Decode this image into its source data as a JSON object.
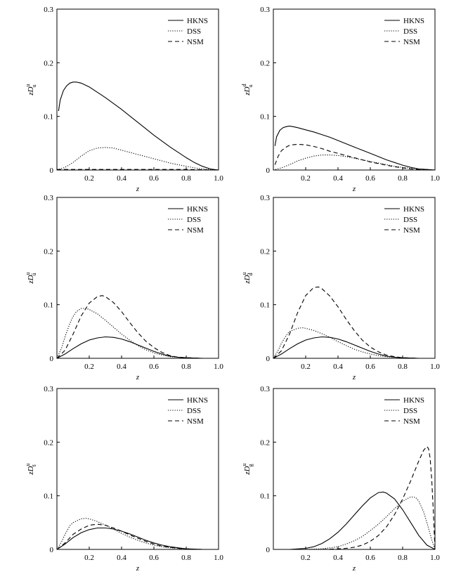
{
  "chart_data": [
    {
      "type": "line",
      "ylabel": "zD_u^u",
      "ylabel_main": "zD",
      "ylabel_sub": "u",
      "ylabel_sup": "u",
      "xlabel": "z",
      "xlim": [
        0,
        1.0
      ],
      "ylim": [
        0,
        0.3
      ],
      "xticks": [
        "0.2",
        "0.4",
        "0.6",
        "0.8",
        "1.0"
      ],
      "yticks": [
        "0",
        "0.1",
        "0.2",
        "0.3"
      ],
      "legend_position": "top-right",
      "series": [
        {
          "name": "HKNS",
          "style": "solid",
          "x": [
            0.01,
            0.02,
            0.04,
            0.06,
            0.08,
            0.1,
            0.12,
            0.15,
            0.2,
            0.25,
            0.3,
            0.35,
            0.4,
            0.45,
            0.5,
            0.55,
            0.6,
            0.65,
            0.7,
            0.75,
            0.8,
            0.85,
            0.9,
            0.95,
            1.0
          ],
          "y": [
            0.11,
            0.13,
            0.148,
            0.157,
            0.162,
            0.164,
            0.164,
            0.162,
            0.155,
            0.145,
            0.135,
            0.124,
            0.113,
            0.101,
            0.089,
            0.077,
            0.065,
            0.054,
            0.043,
            0.033,
            0.023,
            0.014,
            0.007,
            0.002,
            0.0
          ]
        },
        {
          "name": "DSS",
          "style": "dotted",
          "x": [
            0.0,
            0.05,
            0.1,
            0.15,
            0.2,
            0.25,
            0.3,
            0.35,
            0.4,
            0.45,
            0.5,
            0.55,
            0.6,
            0.65,
            0.7,
            0.75,
            0.8,
            0.85,
            0.9,
            0.95,
            1.0
          ],
          "y": [
            0.0,
            0.005,
            0.014,
            0.026,
            0.036,
            0.041,
            0.042,
            0.041,
            0.037,
            0.033,
            0.029,
            0.025,
            0.021,
            0.017,
            0.013,
            0.01,
            0.007,
            0.004,
            0.002,
            0.001,
            0.0
          ]
        },
        {
          "name": "NSM",
          "style": "dashed",
          "x": [
            0.0,
            0.2,
            0.4,
            0.6,
            0.8,
            1.0
          ],
          "y": [
            0.001,
            0.001,
            0.001,
            0.001,
            0.001,
            0.0
          ]
        }
      ]
    },
    {
      "type": "line",
      "ylabel": "zD_u^d",
      "ylabel_main": "zD",
      "ylabel_sub": "u",
      "ylabel_sup": "d",
      "xlabel": "z",
      "xlim": [
        0,
        1.0
      ],
      "ylim": [
        0,
        0.3
      ],
      "xticks": [
        "0.2",
        "0.4",
        "0.6",
        "0.8",
        "1.0"
      ],
      "yticks": [
        "0",
        "0.1",
        "0.2",
        "0.3"
      ],
      "legend_position": "top-right",
      "series": [
        {
          "name": "HKNS",
          "style": "solid",
          "x": [
            0.01,
            0.02,
            0.04,
            0.06,
            0.08,
            0.1,
            0.12,
            0.15,
            0.2,
            0.25,
            0.3,
            0.35,
            0.4,
            0.45,
            0.5,
            0.55,
            0.6,
            0.65,
            0.7,
            0.75,
            0.8,
            0.85,
            0.9,
            0.95,
            1.0
          ],
          "y": [
            0.045,
            0.062,
            0.074,
            0.079,
            0.081,
            0.082,
            0.081,
            0.079,
            0.075,
            0.071,
            0.066,
            0.061,
            0.055,
            0.049,
            0.043,
            0.037,
            0.031,
            0.025,
            0.019,
            0.014,
            0.009,
            0.005,
            0.002,
            0.001,
            0.0
          ]
        },
        {
          "name": "DSS",
          "style": "dotted",
          "x": [
            0.0,
            0.05,
            0.1,
            0.15,
            0.2,
            0.25,
            0.3,
            0.35,
            0.4,
            0.45,
            0.5,
            0.55,
            0.6,
            0.65,
            0.7,
            0.75,
            0.8,
            0.85,
            0.9,
            0.95,
            1.0
          ],
          "y": [
            0.0,
            0.004,
            0.01,
            0.017,
            0.022,
            0.026,
            0.028,
            0.028,
            0.027,
            0.025,
            0.022,
            0.019,
            0.016,
            0.013,
            0.01,
            0.007,
            0.005,
            0.003,
            0.002,
            0.001,
            0.0
          ]
        },
        {
          "name": "NSM",
          "style": "dashed",
          "x": [
            0.01,
            0.03,
            0.05,
            0.08,
            0.1,
            0.12,
            0.15,
            0.2,
            0.25,
            0.3,
            0.35,
            0.4,
            0.45,
            0.5,
            0.55,
            0.6,
            0.65,
            0.7,
            0.75,
            0.8,
            0.85,
            0.9,
            0.95,
            1.0
          ],
          "y": [
            0.01,
            0.026,
            0.036,
            0.043,
            0.046,
            0.047,
            0.048,
            0.047,
            0.044,
            0.04,
            0.035,
            0.031,
            0.027,
            0.023,
            0.019,
            0.015,
            0.012,
            0.009,
            0.006,
            0.004,
            0.002,
            0.001,
            0.0,
            0.0
          ]
        }
      ]
    },
    {
      "type": "line",
      "ylabel": "zD_ū^u",
      "ylabel_main": "zD",
      "ylabel_sub": "ū",
      "ylabel_sup": "u",
      "xlabel": "z",
      "xlim": [
        0,
        1.0
      ],
      "ylim": [
        0,
        0.3
      ],
      "xticks": [
        "0.2",
        "0.4",
        "0.6",
        "0.8",
        "1.0"
      ],
      "yticks": [
        "0",
        "0.1",
        "0.2",
        "0.3"
      ],
      "legend_position": "top-right",
      "series": [
        {
          "name": "HKNS",
          "style": "solid",
          "x": [
            0.0,
            0.05,
            0.1,
            0.15,
            0.2,
            0.25,
            0.3,
            0.35,
            0.4,
            0.45,
            0.5,
            0.55,
            0.6,
            0.65,
            0.7,
            0.75,
            0.8,
            0.9,
            1.0
          ],
          "y": [
            0.0,
            0.008,
            0.018,
            0.027,
            0.034,
            0.038,
            0.04,
            0.039,
            0.036,
            0.031,
            0.025,
            0.019,
            0.013,
            0.008,
            0.004,
            0.002,
            0.001,
            0.0,
            0.0
          ]
        },
        {
          "name": "DSS",
          "style": "dotted",
          "x": [
            0.0,
            0.03,
            0.05,
            0.08,
            0.1,
            0.12,
            0.15,
            0.18,
            0.2,
            0.25,
            0.3,
            0.35,
            0.4,
            0.45,
            0.5,
            0.55,
            0.6,
            0.65,
            0.7,
            0.75,
            0.8,
            0.9,
            1.0
          ],
          "y": [
            0.0,
            0.02,
            0.04,
            0.065,
            0.078,
            0.087,
            0.093,
            0.093,
            0.091,
            0.083,
            0.071,
            0.058,
            0.045,
            0.034,
            0.024,
            0.016,
            0.01,
            0.006,
            0.003,
            0.002,
            0.001,
            0.0,
            0.0
          ]
        },
        {
          "name": "NSM",
          "style": "dashed",
          "x": [
            0.0,
            0.05,
            0.1,
            0.15,
            0.2,
            0.25,
            0.28,
            0.3,
            0.35,
            0.4,
            0.45,
            0.5,
            0.55,
            0.6,
            0.65,
            0.7,
            0.75,
            0.8,
            0.9,
            1.0
          ],
          "y": [
            0.0,
            0.015,
            0.045,
            0.079,
            0.103,
            0.115,
            0.117,
            0.115,
            0.104,
            0.087,
            0.067,
            0.048,
            0.032,
            0.02,
            0.011,
            0.005,
            0.002,
            0.001,
            0.0,
            0.0
          ]
        }
      ]
    },
    {
      "type": "line",
      "ylabel": "zD_d̄^u",
      "ylabel_main": "zD",
      "ylabel_sub": "d̄",
      "ylabel_sup": "u",
      "xlabel": "z",
      "xlim": [
        0,
        1.0
      ],
      "ylim": [
        0,
        0.3
      ],
      "xticks": [
        "0.2",
        "0.4",
        "0.6",
        "0.8",
        "1.0"
      ],
      "yticks": [
        "0",
        "0.1",
        "0.2",
        "0.3"
      ],
      "legend_position": "top-right",
      "series": [
        {
          "name": "HKNS",
          "style": "solid",
          "x": [
            0.0,
            0.05,
            0.1,
            0.15,
            0.2,
            0.25,
            0.3,
            0.35,
            0.4,
            0.45,
            0.5,
            0.55,
            0.6,
            0.65,
            0.7,
            0.75,
            0.8,
            0.9,
            1.0
          ],
          "y": [
            0.0,
            0.008,
            0.018,
            0.027,
            0.034,
            0.038,
            0.04,
            0.039,
            0.036,
            0.031,
            0.025,
            0.019,
            0.013,
            0.008,
            0.004,
            0.002,
            0.001,
            0.0,
            0.0
          ]
        },
        {
          "name": "DSS",
          "style": "dotted",
          "x": [
            0.0,
            0.03,
            0.05,
            0.08,
            0.1,
            0.15,
            0.18,
            0.2,
            0.25,
            0.3,
            0.35,
            0.4,
            0.45,
            0.5,
            0.55,
            0.6,
            0.65,
            0.7,
            0.75,
            0.8,
            0.9,
            1.0
          ],
          "y": [
            0.0,
            0.015,
            0.028,
            0.043,
            0.05,
            0.056,
            0.057,
            0.056,
            0.052,
            0.046,
            0.039,
            0.031,
            0.024,
            0.017,
            0.012,
            0.008,
            0.005,
            0.003,
            0.002,
            0.001,
            0.0,
            0.0
          ]
        },
        {
          "name": "NSM",
          "style": "dashed",
          "x": [
            0.0,
            0.05,
            0.1,
            0.15,
            0.2,
            0.25,
            0.28,
            0.3,
            0.35,
            0.4,
            0.45,
            0.5,
            0.55,
            0.6,
            0.65,
            0.7,
            0.75,
            0.8,
            0.9,
            1.0
          ],
          "y": [
            0.0,
            0.014,
            0.045,
            0.085,
            0.117,
            0.132,
            0.133,
            0.13,
            0.116,
            0.096,
            0.073,
            0.052,
            0.034,
            0.021,
            0.012,
            0.006,
            0.003,
            0.001,
            0.0,
            0.0
          ]
        }
      ]
    },
    {
      "type": "line",
      "ylabel": "zD_s̄^u",
      "ylabel_main": "zD",
      "ylabel_sub": "s̄",
      "ylabel_sup": "u",
      "xlabel": "z",
      "xlim": [
        0,
        1.0
      ],
      "ylim": [
        0,
        0.3
      ],
      "xticks": [
        "0.2",
        "0.4",
        "0.6",
        "0.8",
        "1.0"
      ],
      "yticks": [
        "0",
        "0.1",
        "0.2",
        "0.3"
      ],
      "legend_position": "top-right",
      "series": [
        {
          "name": "HKNS",
          "style": "solid",
          "x": [
            0.0,
            0.05,
            0.1,
            0.15,
            0.2,
            0.25,
            0.3,
            0.35,
            0.4,
            0.45,
            0.5,
            0.55,
            0.6,
            0.65,
            0.7,
            0.75,
            0.8,
            0.9,
            1.0
          ],
          "y": [
            0.0,
            0.01,
            0.022,
            0.031,
            0.037,
            0.04,
            0.04,
            0.038,
            0.034,
            0.029,
            0.023,
            0.017,
            0.012,
            0.008,
            0.005,
            0.003,
            0.001,
            0.0,
            0.0
          ]
        },
        {
          "name": "DSS",
          "style": "dotted",
          "x": [
            0.0,
            0.03,
            0.05,
            0.08,
            0.1,
            0.15,
            0.18,
            0.2,
            0.25,
            0.3,
            0.35,
            0.4,
            0.45,
            0.5,
            0.55,
            0.6,
            0.65,
            0.7,
            0.75,
            0.8,
            0.9,
            1.0
          ],
          "y": [
            0.0,
            0.015,
            0.028,
            0.044,
            0.05,
            0.057,
            0.058,
            0.057,
            0.052,
            0.045,
            0.038,
            0.03,
            0.023,
            0.017,
            0.012,
            0.008,
            0.005,
            0.003,
            0.002,
            0.001,
            0.0,
            0.0
          ]
        },
        {
          "name": "NSM",
          "style": "dashed",
          "x": [
            0.0,
            0.05,
            0.1,
            0.15,
            0.2,
            0.25,
            0.3,
            0.35,
            0.4,
            0.45,
            0.5,
            0.55,
            0.6,
            0.65,
            0.7,
            0.75,
            0.8,
            0.9,
            1.0
          ],
          "y": [
            0.0,
            0.012,
            0.028,
            0.038,
            0.045,
            0.047,
            0.045,
            0.04,
            0.034,
            0.027,
            0.021,
            0.015,
            0.01,
            0.006,
            0.004,
            0.002,
            0.001,
            0.0,
            0.0
          ]
        }
      ]
    },
    {
      "type": "line",
      "ylabel": "zD_g^u",
      "ylabel_main": "zD",
      "ylabel_sub": "g",
      "ylabel_sup": "u",
      "xlabel": "z",
      "xlim": [
        0,
        1.0
      ],
      "ylim": [
        0,
        0.3
      ],
      "xticks": [
        "0.2",
        "0.4",
        "0.6",
        "0.8",
        "1.0"
      ],
      "yticks": [
        "0",
        "0.1",
        "0.2",
        "0.3"
      ],
      "legend_position": "top-right",
      "series": [
        {
          "name": "HKNS",
          "style": "solid",
          "x": [
            0.0,
            0.1,
            0.2,
            0.25,
            0.3,
            0.35,
            0.4,
            0.45,
            0.5,
            0.55,
            0.6,
            0.65,
            0.68,
            0.7,
            0.75,
            0.8,
            0.85,
            0.9,
            0.95,
            1.0
          ],
          "y": [
            0.0,
            0.0,
            0.002,
            0.005,
            0.011,
            0.02,
            0.032,
            0.047,
            0.064,
            0.081,
            0.096,
            0.106,
            0.107,
            0.105,
            0.094,
            0.074,
            0.05,
            0.026,
            0.008,
            0.0
          ]
        },
        {
          "name": "DSS",
          "style": "dotted",
          "x": [
            0.0,
            0.2,
            0.3,
            0.4,
            0.45,
            0.5,
            0.55,
            0.6,
            0.65,
            0.7,
            0.75,
            0.8,
            0.85,
            0.88,
            0.9,
            0.93,
            0.95,
            0.98,
            1.0
          ],
          "y": [
            0.0,
            0.0,
            0.001,
            0.005,
            0.01,
            0.016,
            0.024,
            0.035,
            0.047,
            0.061,
            0.076,
            0.09,
            0.098,
            0.097,
            0.09,
            0.07,
            0.05,
            0.018,
            0.0
          ]
        },
        {
          "name": "NSM",
          "style": "dashed",
          "x": [
            0.0,
            0.3,
            0.4,
            0.45,
            0.5,
            0.55,
            0.6,
            0.65,
            0.7,
            0.75,
            0.8,
            0.85,
            0.9,
            0.93,
            0.95,
            0.96,
            0.97,
            0.98,
            0.99,
            1.0
          ],
          "y": [
            0.0,
            0.0,
            0.001,
            0.002,
            0.004,
            0.008,
            0.015,
            0.026,
            0.042,
            0.065,
            0.094,
            0.128,
            0.165,
            0.185,
            0.192,
            0.188,
            0.17,
            0.13,
            0.07,
            0.0
          ]
        }
      ]
    }
  ]
}
